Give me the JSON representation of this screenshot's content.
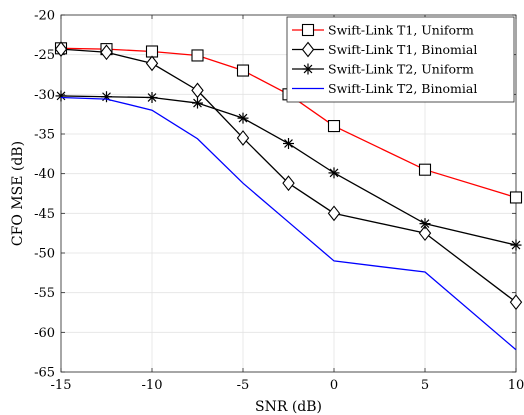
{
  "chart_data": {
    "type": "line",
    "xlabel": "SNR (dB)",
    "ylabel": "CFO MSE (dB)",
    "xlim": [
      -15,
      10
    ],
    "ylim": [
      -65,
      -20
    ],
    "xticks": [
      -15,
      -10,
      -5,
      0,
      5,
      10
    ],
    "yticks": [
      -20,
      -25,
      -30,
      -35,
      -40,
      -45,
      -50,
      -55,
      -60,
      -65
    ],
    "grid": true,
    "legend_position": "top-right",
    "series": [
      {
        "name": "Swift-Link T1, Uniform",
        "color": "#ff0000",
        "marker": "square",
        "x": [
          -15,
          -12.5,
          -10,
          -7.5,
          -5,
          -2.5,
          0,
          5,
          10
        ],
        "y": [
          -24.2,
          -24.3,
          -24.6,
          -25.1,
          -27.0,
          -30.0,
          -34.0,
          -39.5,
          -43.0
        ]
      },
      {
        "name": "Swift-Link T1, Binomial",
        "color": "#000000",
        "marker": "diamond",
        "x": [
          -15,
          -12.5,
          -10,
          -7.5,
          -5,
          -2.5,
          0,
          5,
          10
        ],
        "y": [
          -24.3,
          -24.7,
          -26.1,
          -29.5,
          -35.5,
          -41.2,
          -45.0,
          -47.5,
          -56.2
        ]
      },
      {
        "name": "Swift-Link T2, Uniform",
        "color": "#000000",
        "marker": "asterisk",
        "x": [
          -15,
          -12.5,
          -10,
          -7.5,
          -5,
          -2.5,
          0,
          5,
          10
        ],
        "y": [
          -30.2,
          -30.3,
          -30.4,
          -31.1,
          -33.0,
          -36.2,
          -39.9,
          -46.3,
          -49.0
        ]
      },
      {
        "name": "Swift-Link T2, Binomial",
        "color": "#0000ff",
        "marker": "none",
        "x": [
          -15,
          -12.5,
          -10,
          -7.5,
          -5,
          -2.5,
          0,
          5,
          10
        ],
        "y": [
          -30.4,
          -30.6,
          -32.0,
          -35.6,
          -41.2,
          -46.1,
          -51.0,
          -52.4,
          -62.2
        ]
      }
    ]
  }
}
